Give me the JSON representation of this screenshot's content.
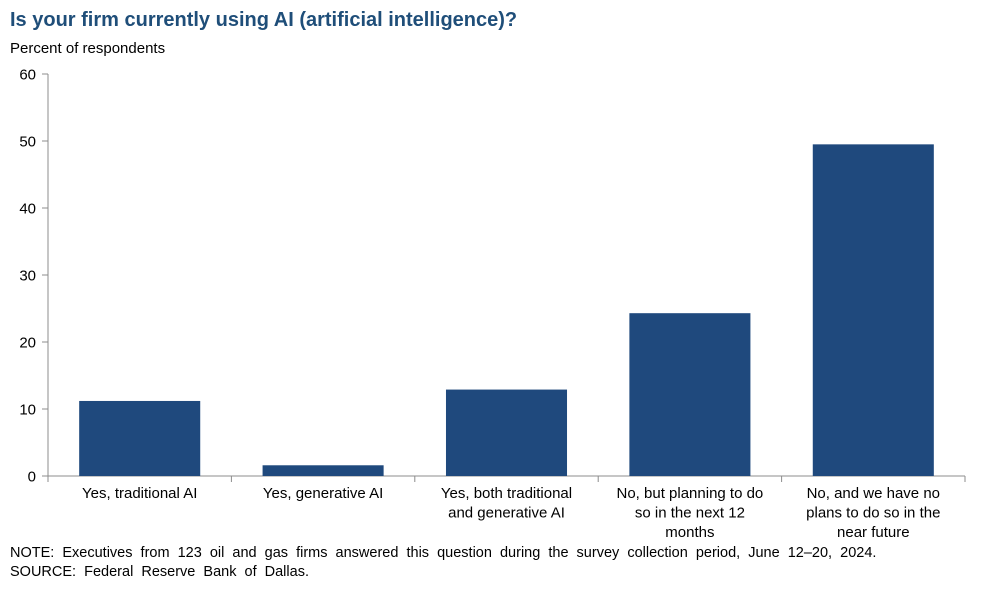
{
  "chart_data": {
    "type": "bar",
    "title": "Is your firm currently using AI (artificial intelligence)?",
    "ylabel": "Percent of respondents",
    "xlabel": "",
    "ylim": [
      0,
      60
    ],
    "yticks": [
      0,
      10,
      20,
      30,
      40,
      50,
      60
    ],
    "categories": [
      [
        "Yes, traditional AI"
      ],
      [
        "Yes, generative AI"
      ],
      [
        "Yes, both traditional",
        "and generative AI"
      ],
      [
        "No, but planning to do",
        "so in the next 12",
        "months"
      ],
      [
        "No, and we have no",
        "plans to do so in the",
        "near future"
      ]
    ],
    "values": [
      11.2,
      1.6,
      12.9,
      24.3,
      49.5
    ],
    "bar_color": "#1f497d",
    "grid": false,
    "legend": "none"
  },
  "notes": {
    "note": "NOTE:  Executives  from  123  oil  and  gas  firms  answered  this  question  during  the  survey  collection  period,  June  12–20,  2024.",
    "source": "SOURCE:  Federal  Reserve  Bank  of  Dallas."
  }
}
